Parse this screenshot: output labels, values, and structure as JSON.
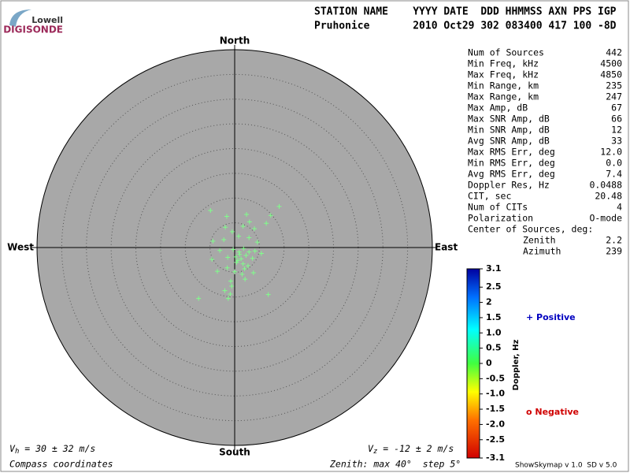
{
  "logo": {
    "top": "Lowell",
    "bottom": "DIGISONDE"
  },
  "header": {
    "line1": "STATION NAME    YYYY DATE  DDD HHMMSS AXN PPS IGP",
    "line2": "Pruhonice       2010 Oct29 302 083400 417 100 -8D"
  },
  "stats": [
    [
      "Num of Sources",
      "442"
    ],
    [
      "Min Freq, kHz",
      "4500"
    ],
    [
      "Max Freq, kHz",
      "4850"
    ],
    [
      "Min Range, km",
      "235"
    ],
    [
      "Max Range, km",
      "247"
    ],
    [
      "Max Amp, dB",
      "67"
    ],
    [
      "Max SNR Amp, dB",
      "66"
    ],
    [
      "Min SNR Amp, dB",
      "12"
    ],
    [
      "Avg SNR Amp, dB",
      "33"
    ],
    [
      "Max RMS Err, deg",
      "12.0"
    ],
    [
      "Min RMS Err, deg",
      "0.0"
    ],
    [
      "Avg RMS Err, deg",
      "7.4"
    ],
    [
      "Doppler Res, Hz",
      "0.0488"
    ],
    [
      "CIT, sec",
      "20.48"
    ],
    [
      "Num of CITs",
      "4"
    ],
    [
      "Polarization",
      "O-mode"
    ]
  ],
  "center": {
    "title": "Center of Sources, deg:",
    "rows": [
      [
        "Zenith",
        "2.2"
      ],
      [
        "Azimuth",
        "239"
      ]
    ]
  },
  "legend": {
    "positive": "+ Positive",
    "negative": "o Negative"
  },
  "footer": {
    "vh_symbol": "V",
    "vh_sub": "h",
    "vh_text": " = 30 ± 32 m/s",
    "vz_symbol": "V",
    "vz_sub": "z",
    "vz_text": " = -12 ± 2 m/s",
    "coords": "Compass coordinates",
    "zenith": "Zenith: max 40°  step 5°",
    "version": "ShowSkymap v 1.0  SD v 5.0"
  },
  "chart_data": {
    "type": "skymap",
    "directions": {
      "north": "North",
      "south": "South",
      "east": "East",
      "west": "West"
    },
    "rlim": [
      0,
      40
    ],
    "rings": [
      5,
      10,
      15,
      20,
      25,
      30,
      35
    ],
    "series": [
      {
        "color": "#7fff8a",
        "x": [
          -4.9,
          -1.6,
          2.4,
          9.0,
          7.3,
          3.0,
          -1.9,
          -0.5,
          1.7,
          4.0,
          6.4,
          -4.4,
          -2.2,
          0.8,
          2.9,
          4.6,
          -3.0,
          -0.3,
          0.9,
          1.8,
          2.9,
          4.1,
          5.4,
          -4.6,
          -1.4,
          0.2,
          1.3,
          2.3,
          3.6,
          0.4,
          1.7,
          2.7,
          -1.5,
          -3.5,
          0.0,
          1.5,
          3.8,
          -0.8,
          -0.6,
          2.1,
          -7.3,
          -0.9,
          -1.3,
          6.8,
          -2.0,
          0.6,
          1.0,
          2.0
        ],
        "y": [
          7.5,
          6.3,
          6.7,
          8.3,
          6.5,
          5.2,
          4.1,
          3.2,
          4.3,
          3.8,
          4.9,
          1.3,
          1.6,
          2.3,
          2.0,
          1.1,
          -0.6,
          -0.4,
          -0.9,
          -0.2,
          -0.9,
          -0.7,
          -1.2,
          -2.4,
          -2.0,
          -1.9,
          -2.3,
          -1.6,
          -2.2,
          -3.0,
          -3.3,
          -3.7,
          -4.1,
          -4.8,
          -4.9,
          -5.4,
          -5.1,
          -6.8,
          -7.8,
          -6.4,
          -10.3,
          -9.4,
          -10.3,
          -9.5,
          -8.7,
          -2.6,
          -1.4,
          -4.3
        ]
      }
    ],
    "colorbar": {
      "label": "Doppler, Hz",
      "clim": [
        -3.1,
        3.1
      ],
      "ticks": [
        3.1,
        2.5,
        2,
        1.5,
        {
          "value": 1,
          "label": "1.0"
        },
        0.5,
        0,
        -0.5,
        {
          "value": -1,
          "label": "-1.0"
        },
        -1.5,
        {
          "value": -2,
          "label": "-2.0"
        },
        -2.5,
        -3.1
      ]
    }
  }
}
